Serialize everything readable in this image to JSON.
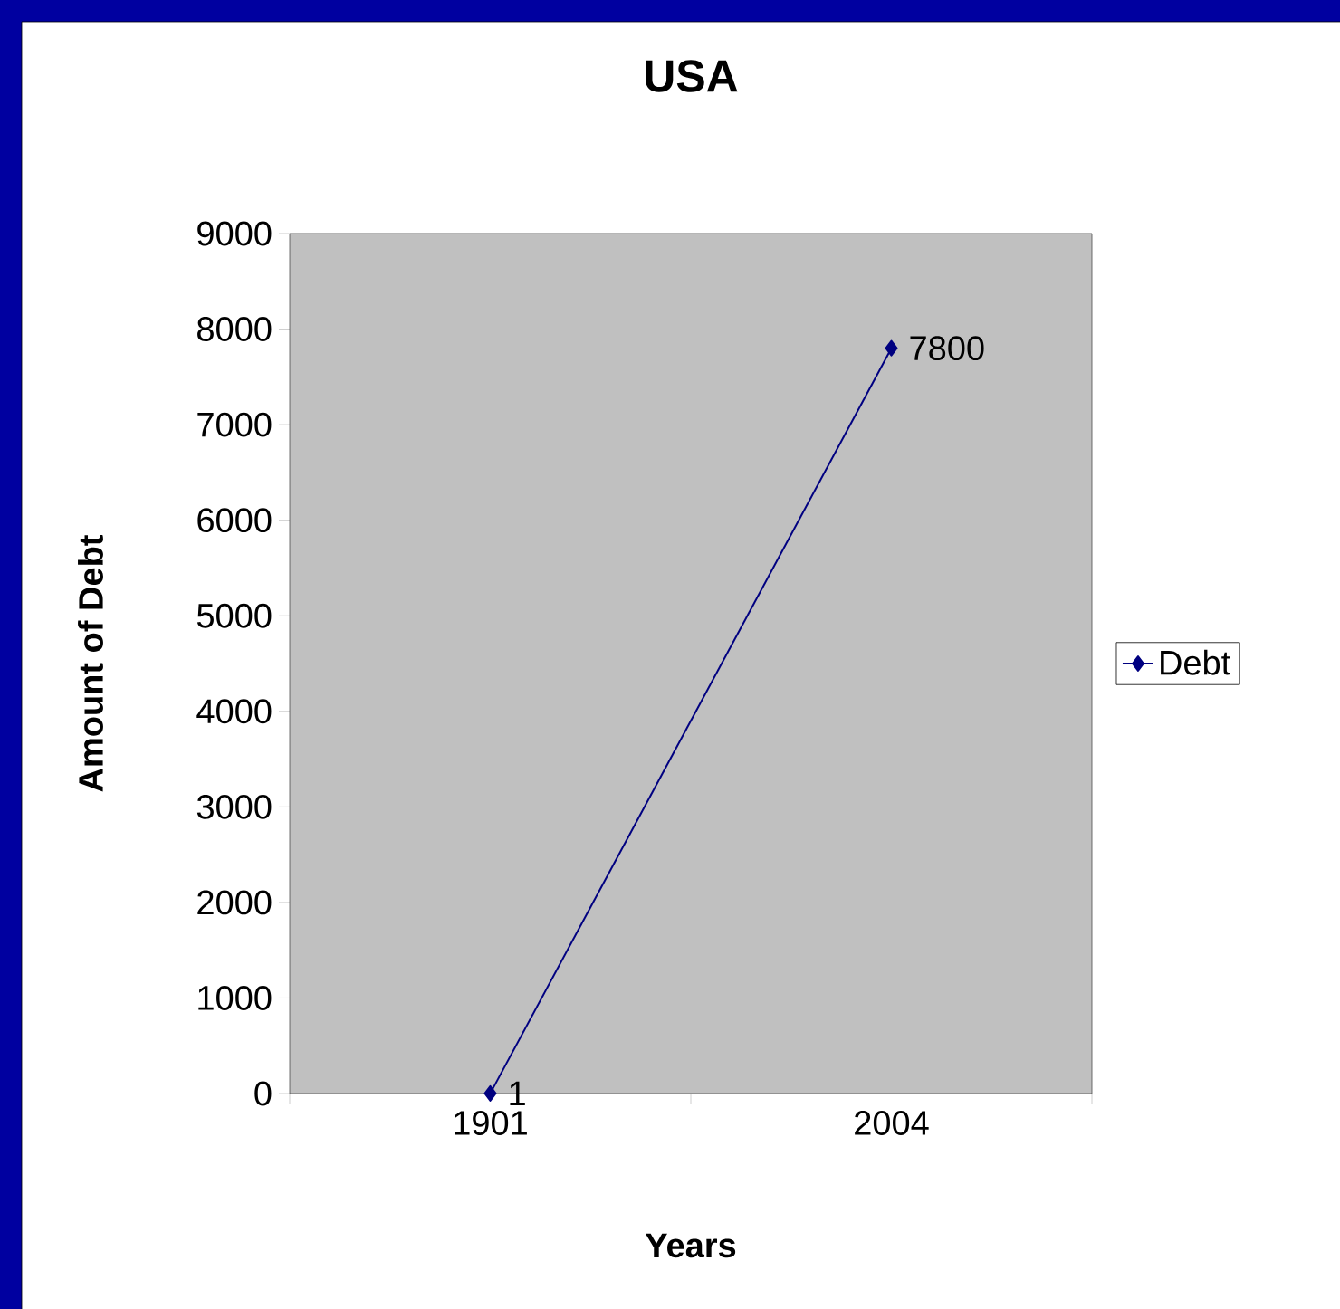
{
  "chart_data": {
    "type": "line",
    "title": "USA",
    "xlabel": "Years",
    "ylabel": "Amount of Debt",
    "categories": [
      "1901",
      "2004"
    ],
    "series": [
      {
        "name": "Debt",
        "color": "#000080",
        "values": [
          1,
          7800
        ]
      }
    ],
    "ylim": [
      0,
      9000
    ],
    "yticks": [
      0,
      1000,
      2000,
      3000,
      4000,
      5000,
      6000,
      7000,
      8000,
      9000
    ],
    "marker": "diamond",
    "legend": "right",
    "data_labels": true
  }
}
